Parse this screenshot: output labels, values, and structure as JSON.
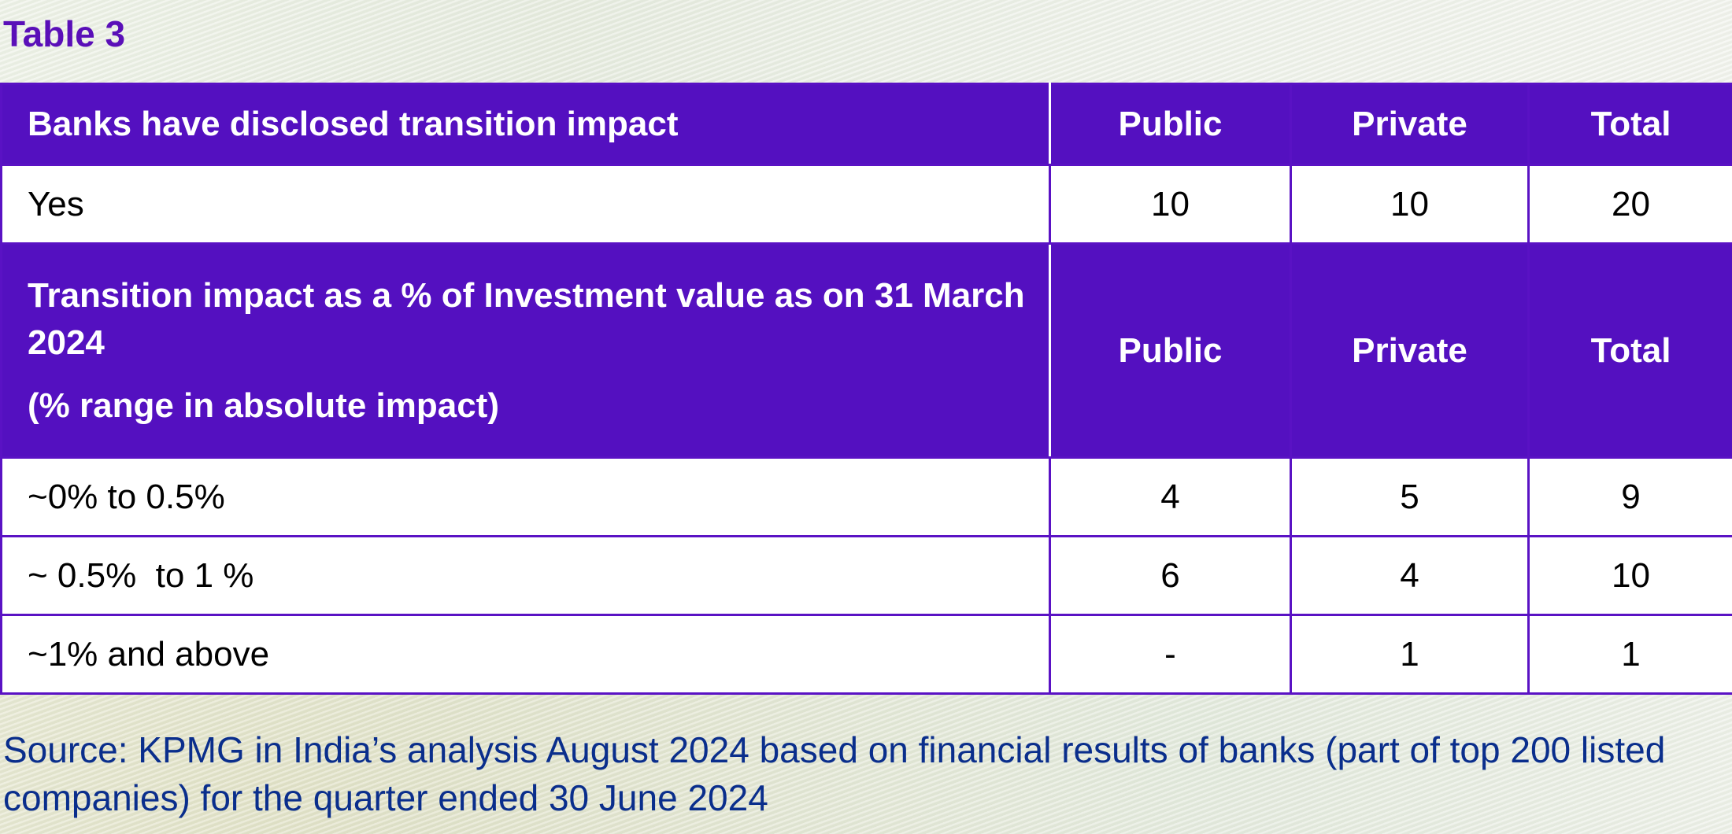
{
  "table_title": "Table 3",
  "columns": {
    "public": "Public",
    "private": "Private",
    "total": "Total"
  },
  "section1": {
    "header": "Banks have disclosed transition impact",
    "rows": [
      {
        "label": "Yes",
        "public": "10",
        "private": "10",
        "total": "20"
      }
    ]
  },
  "section2": {
    "header_line1": "Transition impact as a % of Investment value as on 31 March 2024",
    "header_line2": "(% range in absolute impact)",
    "rows": [
      {
        "label": "~0% to 0.5%",
        "public": "4",
        "private": "5",
        "total": "9"
      },
      {
        "label": "~ 0.5%  to 1 %",
        "public": "6",
        "private": "4",
        "total": "10"
      },
      {
        "label": "~1% and above",
        "public": "-",
        "private": "1",
        "total": "1"
      }
    ]
  },
  "source": "Source: KPMG in India’s analysis August 2024 based on financial results of banks (part of top 200 listed companies) for the quarter ended 30 June 2024"
}
